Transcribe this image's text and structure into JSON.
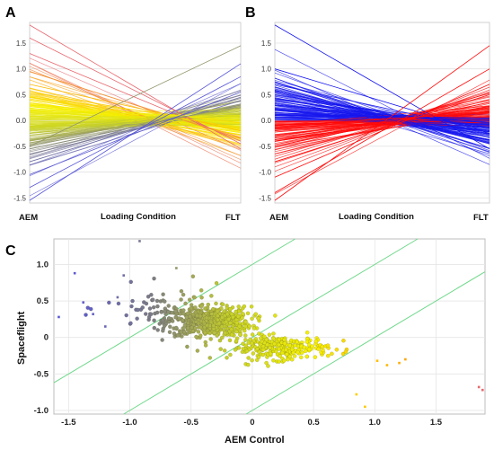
{
  "chart_data": [
    {
      "panel": "A",
      "type": "line",
      "categories": [
        "AEM",
        "FLT"
      ],
      "xlabel": "Loading Condition",
      "y_ticks": [
        "1.5",
        "1.0",
        "0.5",
        "0.0",
        "-0.5",
        "-1.0",
        "-1.5"
      ],
      "ylim": [
        -1.6,
        1.9
      ],
      "grid": true,
      "n_lines": 160,
      "color_scale": [
        "#5a58d8",
        "#7a7a8a",
        "#c8d228",
        "#f7f200",
        "#ffb400",
        "#e8686e"
      ],
      "series": [
        {
          "values": [
            1.85,
            -0.55
          ]
        },
        {
          "values": [
            1.6,
            -0.45
          ]
        },
        {
          "values": [
            1.3,
            -0.4
          ]
        },
        {
          "values": [
            0.95,
            -0.35
          ]
        },
        {
          "values": [
            0.7,
            -0.2
          ]
        },
        {
          "values": [
            0.55,
            -0.15
          ]
        },
        {
          "values": [
            0.45,
            -0.05
          ]
        },
        {
          "values": [
            0.3,
            0.0
          ]
        },
        {
          "values": [
            0.2,
            0.05
          ]
        },
        {
          "values": [
            0.05,
            0.1
          ]
        },
        {
          "values": [
            -0.1,
            0.15
          ]
        },
        {
          "values": [
            -0.25,
            0.2
          ]
        },
        {
          "values": [
            -0.4,
            0.25
          ]
        },
        {
          "values": [
            -0.55,
            0.3
          ]
        },
        {
          "values": [
            -0.8,
            0.45
          ]
        },
        {
          "values": [
            -1.05,
            0.55
          ]
        },
        {
          "values": [
            -1.3,
            0.85
          ]
        },
        {
          "values": [
            -1.55,
            1.1
          ]
        },
        {
          "values": [
            -0.5,
            1.45
          ]
        }
      ]
    },
    {
      "panel": "B",
      "type": "line",
      "categories": [
        "AEM",
        "FLT"
      ],
      "xlabel": "Loading Condition",
      "y_ticks": [
        "1.5",
        "1.0",
        "0.5",
        "0.0",
        "-0.5",
        "-1.0",
        "-1.5"
      ],
      "ylim": [
        -1.6,
        1.9
      ],
      "grid": true,
      "n_lines": 160,
      "colors": {
        "decrease": "#1515ee",
        "increase": "#ff0a0a"
      },
      "series": [
        {
          "values": [
            1.85,
            -0.55
          ],
          "group": "decrease"
        },
        {
          "values": [
            1.0,
            -0.25
          ],
          "group": "decrease"
        },
        {
          "values": [
            0.7,
            -0.2
          ],
          "group": "decrease"
        },
        {
          "values": [
            0.5,
            -0.15
          ],
          "group": "decrease"
        },
        {
          "values": [
            0.3,
            -0.05
          ],
          "group": "decrease"
        },
        {
          "values": [
            0.15,
            0.0
          ],
          "group": "decrease"
        },
        {
          "values": [
            -0.1,
            0.15
          ],
          "group": "increase"
        },
        {
          "values": [
            -0.3,
            0.25
          ],
          "group": "increase"
        },
        {
          "values": [
            -0.5,
            0.35
          ],
          "group": "increase"
        },
        {
          "values": [
            -0.8,
            0.5
          ],
          "group": "increase"
        },
        {
          "values": [
            -1.1,
            0.7
          ],
          "group": "increase"
        },
        {
          "values": [
            -1.4,
            1.0
          ],
          "group": "increase"
        },
        {
          "values": [
            -1.55,
            1.45
          ],
          "group": "increase"
        }
      ]
    },
    {
      "panel": "C",
      "type": "scatter",
      "xlabel": "AEM Control",
      "ylabel": "Spaceflight",
      "x_ticks": [
        "-1.5",
        "-1.0",
        "-0.5",
        "0",
        "0.5",
        "1.0",
        "1.5"
      ],
      "y_ticks": [
        "1.0",
        "0.5",
        "0",
        "-0.5",
        "-1.0"
      ],
      "xlim": [
        -1.62,
        1.9
      ],
      "ylim": [
        -1.05,
        1.35
      ],
      "grid": true,
      "n_points": 900,
      "reference_lines": [
        {
          "slope": 1,
          "intercept": 1.0
        },
        {
          "slope": 1,
          "intercept": 0.0
        },
        {
          "slope": 1,
          "intercept": -1.0
        }
      ],
      "outliers": [
        {
          "x": -1.45,
          "y": 0.88
        },
        {
          "x": -1.38,
          "y": 0.48
        },
        {
          "x": -1.58,
          "y": 0.28
        },
        {
          "x": -1.3,
          "y": 0.32
        },
        {
          "x": -1.1,
          "y": 0.55
        },
        {
          "x": -0.92,
          "y": 1.32
        },
        {
          "x": -1.05,
          "y": 0.85
        },
        {
          "x": -0.62,
          "y": 0.95
        },
        {
          "x": -1.2,
          "y": 0.15
        },
        {
          "x": 1.88,
          "y": -0.72
        },
        {
          "x": 1.85,
          "y": -0.68
        },
        {
          "x": 1.2,
          "y": -0.35
        },
        {
          "x": 1.25,
          "y": -0.3
        },
        {
          "x": 1.1,
          "y": -0.38
        },
        {
          "x": 0.85,
          "y": -0.78
        },
        {
          "x": 0.92,
          "y": -0.95
        },
        {
          "x": 1.02,
          "y": -0.32
        }
      ]
    }
  ],
  "panels": {
    "a": {
      "letter": "A",
      "x_left_label": "AEM",
      "x_mid_label": "Loading Condition",
      "x_right_label": "FLT"
    },
    "b": {
      "letter": "B",
      "x_left_label": "AEM",
      "x_mid_label": "Loading  Condition",
      "x_right_label": "FLT"
    },
    "c": {
      "letter": "C",
      "xlabel": "AEM Control",
      "ylabel": "Spaceflight"
    }
  }
}
